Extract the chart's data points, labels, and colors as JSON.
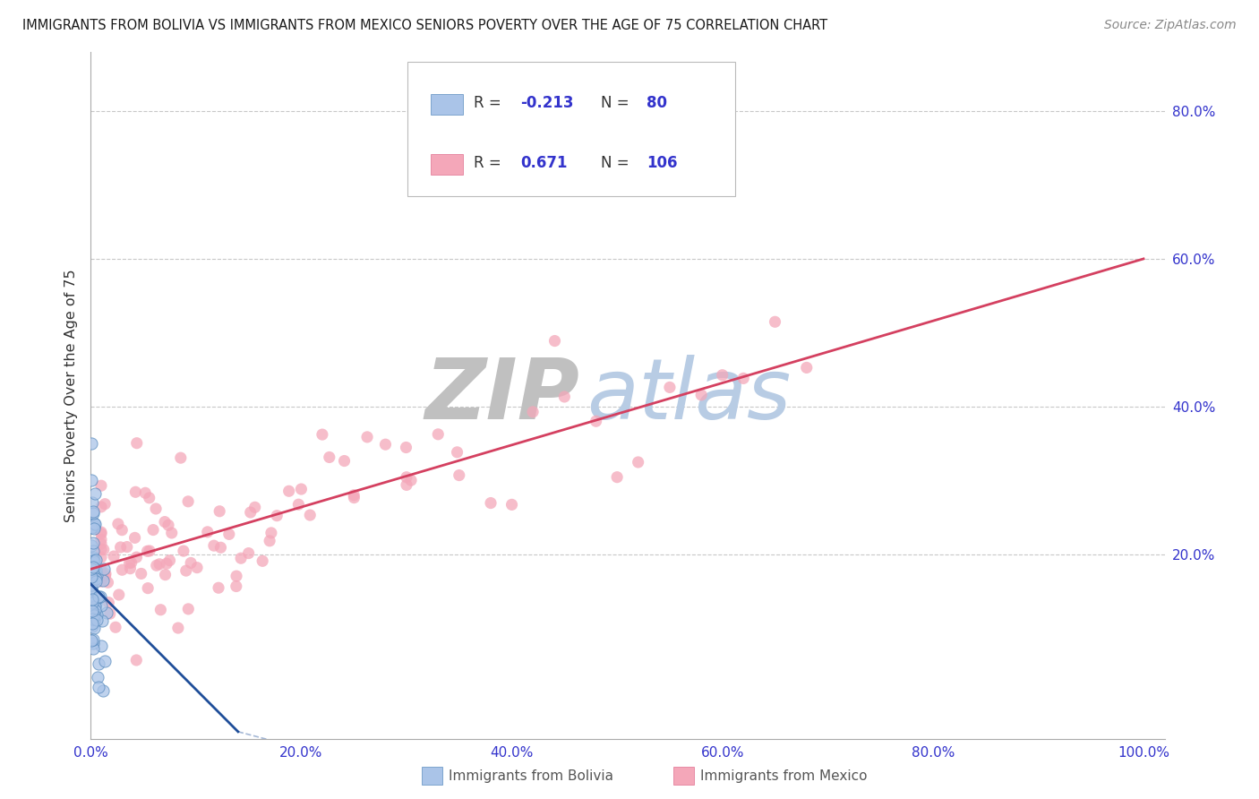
{
  "title": "IMMIGRANTS FROM BOLIVIA VS IMMIGRANTS FROM MEXICO SENIORS POVERTY OVER THE AGE OF 75 CORRELATION CHART",
  "source": "Source: ZipAtlas.com",
  "ylabel": "Seniors Poverty Over the Age of 75",
  "bolivia_R": -0.213,
  "bolivia_N": 80,
  "mexico_R": 0.671,
  "mexico_N": 106,
  "bolivia_color": "#aac4e8",
  "mexico_color": "#f4a7b9",
  "bolivia_edge_color": "#5b8dbf",
  "mexico_edge_color": "#e07090",
  "bolivia_line_color": "#1f4e99",
  "mexico_line_color": "#d44060",
  "background_color": "#ffffff",
  "grid_color": "#c8c8c8",
  "zip_watermark_color": "#c0c0c0",
  "atlas_watermark_color": "#b8cce4",
  "title_color": "#1a1a1a",
  "axis_tick_color": "#3333cc",
  "legend_R_color": "#333333",
  "legend_N_color": "#3333cc",
  "xlim": [
    0.0,
    1.02
  ],
  "ylim": [
    -0.05,
    0.88
  ],
  "mexico_line_x0": 0.0,
  "mexico_line_y0": 0.18,
  "mexico_line_x1": 1.0,
  "mexico_line_y1": 0.6,
  "bolivia_line_x0": 0.0,
  "bolivia_line_y0": 0.16,
  "bolivia_line_x1": 0.14,
  "bolivia_line_y1": -0.04
}
